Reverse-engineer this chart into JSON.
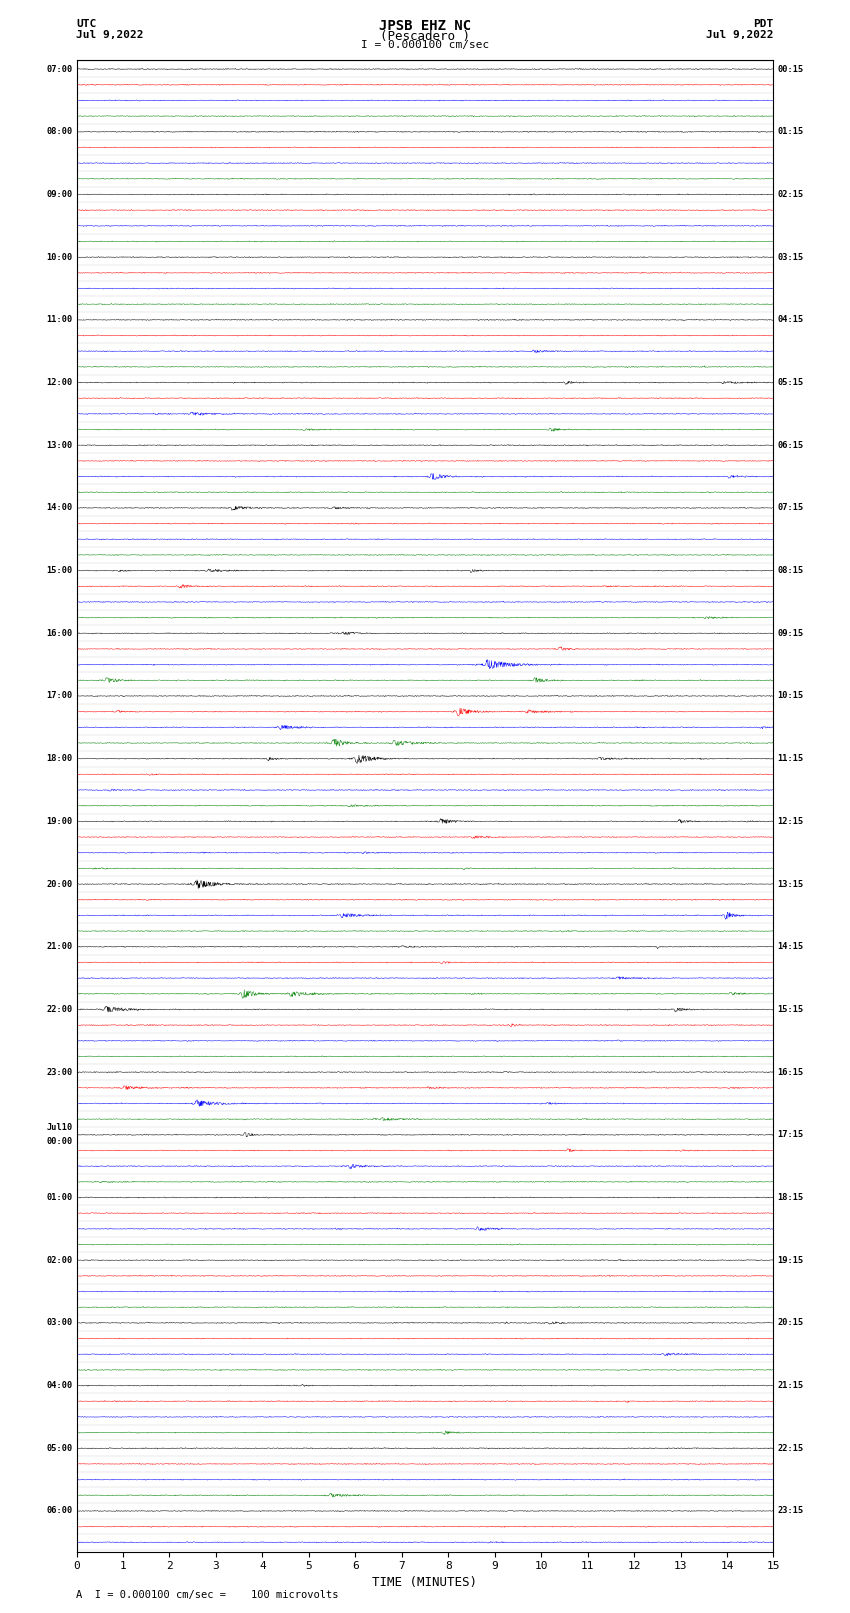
{
  "title_line1": "JPSB EHZ NC",
  "title_line2": "(Pescadero )",
  "scale_label": "I = 0.000100 cm/sec",
  "footer_label": "A  I = 0.000100 cm/sec =    100 microvolts",
  "utc_label": "UTC",
  "utc_date": "Jul 9,2022",
  "pdt_label": "PDT",
  "pdt_date": "Jul 9,2022",
  "xlabel": "TIME (MINUTES)",
  "xlim": [
    0,
    15
  ],
  "xticks": [
    0,
    1,
    2,
    3,
    4,
    5,
    6,
    7,
    8,
    9,
    10,
    11,
    12,
    13,
    14,
    15
  ],
  "left_labels": [
    "07:00",
    "",
    "",
    "",
    "08:00",
    "",
    "",
    "",
    "09:00",
    "",
    "",
    "",
    "10:00",
    "",
    "",
    "",
    "11:00",
    "",
    "",
    "",
    "12:00",
    "",
    "",
    "",
    "13:00",
    "",
    "",
    "",
    "14:00",
    "",
    "",
    "",
    "15:00",
    "",
    "",
    "",
    "16:00",
    "",
    "",
    "",
    "17:00",
    "",
    "",
    "",
    "18:00",
    "",
    "",
    "",
    "19:00",
    "",
    "",
    "",
    "20:00",
    "",
    "",
    "",
    "21:00",
    "",
    "",
    "",
    "22:00",
    "",
    "",
    "",
    "23:00",
    "",
    "",
    "",
    "Jul10\n00:00",
    "",
    "",
    "",
    "01:00",
    "",
    "",
    "",
    "02:00",
    "",
    "",
    "",
    "03:00",
    "",
    "",
    "",
    "04:00",
    "",
    "",
    "",
    "05:00",
    "",
    "",
    "",
    "06:00",
    "",
    ""
  ],
  "right_labels": [
    "00:15",
    "",
    "",
    "",
    "01:15",
    "",
    "",
    "",
    "02:15",
    "",
    "",
    "",
    "03:15",
    "",
    "",
    "",
    "04:15",
    "",
    "",
    "",
    "05:15",
    "",
    "",
    "",
    "06:15",
    "",
    "",
    "",
    "07:15",
    "",
    "",
    "",
    "08:15",
    "",
    "",
    "",
    "09:15",
    "",
    "",
    "",
    "10:15",
    "",
    "",
    "",
    "11:15",
    "",
    "",
    "",
    "12:15",
    "",
    "",
    "",
    "13:15",
    "",
    "",
    "",
    "14:15",
    "",
    "",
    "",
    "15:15",
    "",
    "",
    "",
    "16:15",
    "",
    "",
    "",
    "17:15",
    "",
    "",
    "",
    "18:15",
    "",
    "",
    "",
    "19:15",
    "",
    "",
    "",
    "20:15",
    "",
    "",
    "",
    "21:15",
    "",
    "",
    "",
    "22:15",
    "",
    "",
    "",
    "23:15",
    "",
    ""
  ],
  "n_rows": 95,
  "row_colors": [
    "black",
    "red",
    "blue",
    "green"
  ],
  "background_color": "white",
  "figsize": [
    8.5,
    16.13
  ],
  "dpi": 100
}
